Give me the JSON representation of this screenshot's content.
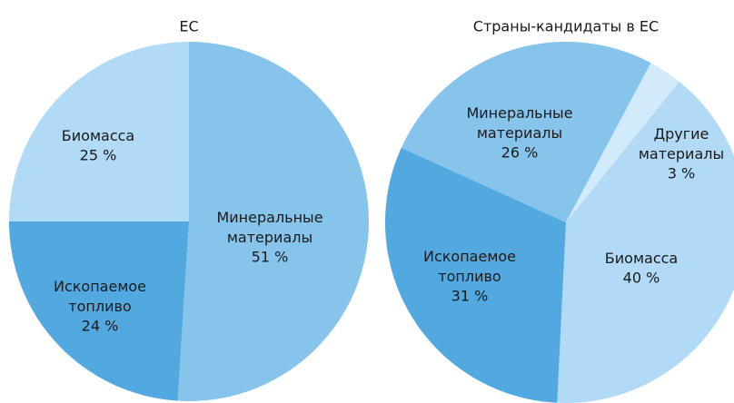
{
  "chart_data": [
    {
      "type": "pie",
      "title": "ЕС",
      "categories": [
        "Минеральные материалы",
        "Ископаемое топливо",
        "Биомасса"
      ],
      "values": [
        51,
        24,
        25
      ],
      "value_labels": [
        "51 %",
        "24 %",
        "25 %"
      ],
      "colors": [
        "#87c4ec",
        "#52a9e0",
        "#b0daf6"
      ]
    },
    {
      "type": "pie",
      "title": "Страны-кандидаты в ЕС",
      "categories": [
        "Другие материалы",
        "Биомасса",
        "Ископаемое топливо",
        "Минеральные материалы"
      ],
      "values": [
        3,
        40,
        31,
        26
      ],
      "value_labels": [
        "3 %",
        "40 %",
        "31 %",
        "26 %"
      ],
      "colors": [
        "#d2ebfb",
        "#b0daf6",
        "#52a9e0",
        "#87c4ec"
      ]
    }
  ]
}
